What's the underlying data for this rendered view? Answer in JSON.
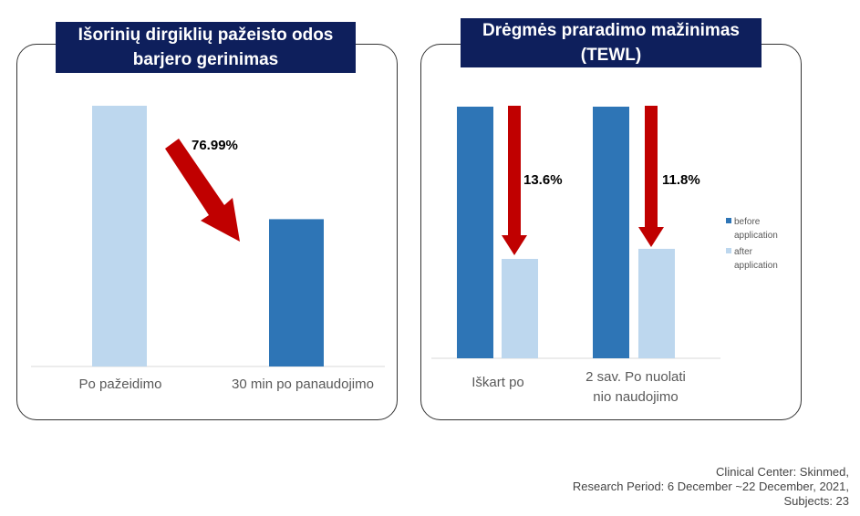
{
  "colors": {
    "dark_bar": "#2e75b6",
    "light_bar": "#bdd7ee",
    "arrow": "#c00000",
    "title_bg": "#0e1f5c"
  },
  "chart_data": [
    {
      "type": "bar",
      "title_line1": "Išorinių dirgiklių pažeisto odos",
      "title_line2": "barjero gerinimas",
      "categories": [
        "Po pažeidimo",
        "30 min po panaudojimo"
      ],
      "values": [
        100,
        56.5
      ],
      "annotation": "76.99%",
      "ylim": [
        0,
        100
      ]
    },
    {
      "type": "bar",
      "title_line1": "Drėgmės praradimo mažinimas",
      "title_line2": "(TEWL)",
      "categories_line1": [
        "Iškart po",
        "2 sav. Po nuolati"
      ],
      "categories_line2": [
        "",
        "nio naudojimo"
      ],
      "series": [
        {
          "name_line1": "before",
          "name_line2": "application",
          "values": [
            100,
            100
          ]
        },
        {
          "name_line1": "after",
          "name_line2": "application",
          "values": [
            39.5,
            43.5
          ]
        }
      ],
      "annotations": [
        "13.6%",
        "11.8%"
      ],
      "ylim": [
        0,
        100
      ]
    }
  ],
  "footer": {
    "line1": "Clinical Center: Skinmed,",
    "line2": "Research Period: 6 December ~22 December, 2021,",
    "line3": "Subjects: 23"
  }
}
